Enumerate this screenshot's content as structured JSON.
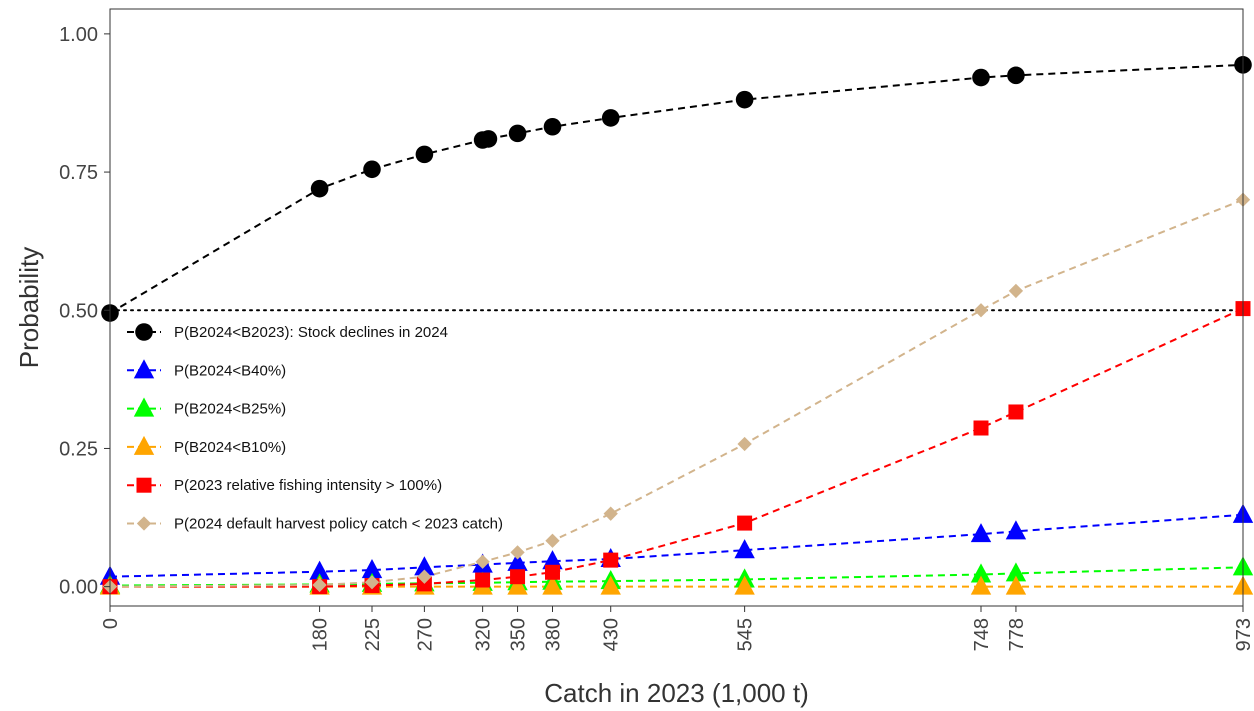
{
  "chart_data": {
    "type": "line",
    "title": "",
    "xlabel": "Catch in 2023 (1,000 t)",
    "ylabel": "Probability",
    "x": [
      0,
      180,
      225,
      270,
      320,
      350,
      380,
      430,
      545,
      748,
      778,
      973
    ],
    "x_tick_labels": [
      "0",
      "180",
      "225",
      "270",
      "320",
      "350",
      "380",
      "430",
      "545",
      "748",
      "778",
      "973"
    ],
    "y_tick_labels": [
      "0.00",
      "0.25",
      "0.50",
      "0.75",
      "1.00"
    ],
    "y_ticks": [
      0,
      0.25,
      0.5,
      0.75,
      1.0
    ],
    "xlim": [
      0,
      973
    ],
    "ylim": [
      -0.035,
      1.045
    ],
    "reference_line": {
      "y": 0.5,
      "style": "dotted",
      "color": "#000000"
    },
    "grid": false,
    "legend_position": "left",
    "series": [
      {
        "name": "P(B2024<B2023): Stock declines in 2024",
        "color": "#000000",
        "marker": "circle",
        "x": [
          0,
          180,
          225,
          270,
          320,
          325,
          350,
          380,
          430,
          545,
          748,
          778,
          973
        ],
        "values": [
          0.495,
          0.72,
          0.755,
          0.782,
          0.808,
          0.81,
          0.82,
          0.832,
          0.848,
          0.881,
          0.921,
          0.925,
          0.944
        ]
      },
      {
        "name": "P(B2024<B40%)",
        "color": "#0000ff",
        "marker": "triangle",
        "x": [
          0,
          180,
          225,
          270,
          320,
          350,
          380,
          430,
          545,
          748,
          778,
          973
        ],
        "values": [
          0.018,
          0.027,
          0.03,
          0.035,
          0.04,
          0.043,
          0.046,
          0.05,
          0.066,
          0.095,
          0.1,
          0.13
        ]
      },
      {
        "name": "P(B2024<B25%)",
        "color": "#00ff00",
        "marker": "triangle",
        "x": [
          0,
          180,
          225,
          270,
          320,
          350,
          380,
          430,
          545,
          748,
          778,
          973
        ],
        "values": [
          0.002,
          0.004,
          0.005,
          0.006,
          0.007,
          0.008,
          0.009,
          0.01,
          0.013,
          0.022,
          0.024,
          0.035
        ]
      },
      {
        "name": "P(B2024<B10%)",
        "color": "#ffa500",
        "marker": "triangle",
        "x": [
          0,
          180,
          225,
          270,
          320,
          350,
          380,
          430,
          545,
          748,
          778,
          973
        ],
        "values": [
          0.0,
          0.0,
          0.0,
          0.0,
          0.0,
          0.0,
          0.0,
          0.0,
          0.0,
          0.0,
          0.0,
          0.0
        ]
      },
      {
        "name": "P(2023 relative fishing intensity > 100%)",
        "color": "#ff0000",
        "marker": "square",
        "x": [
          0,
          180,
          225,
          270,
          320,
          350,
          380,
          430,
          545,
          748,
          778,
          973
        ],
        "values": [
          0.0,
          0.0,
          0.002,
          0.005,
          0.012,
          0.018,
          0.026,
          0.048,
          0.115,
          0.287,
          0.316,
          0.503
        ]
      },
      {
        "name": "P(2024 default harvest policy catch < 2023 catch)",
        "color": "#d2b48c",
        "marker": "diamond",
        "x": [
          0,
          180,
          225,
          270,
          320,
          350,
          380,
          430,
          545,
          748,
          778,
          973
        ],
        "values": [
          0.0,
          0.003,
          0.008,
          0.018,
          0.045,
          0.062,
          0.083,
          0.132,
          0.258,
          0.5,
          0.535,
          0.7
        ]
      }
    ]
  }
}
